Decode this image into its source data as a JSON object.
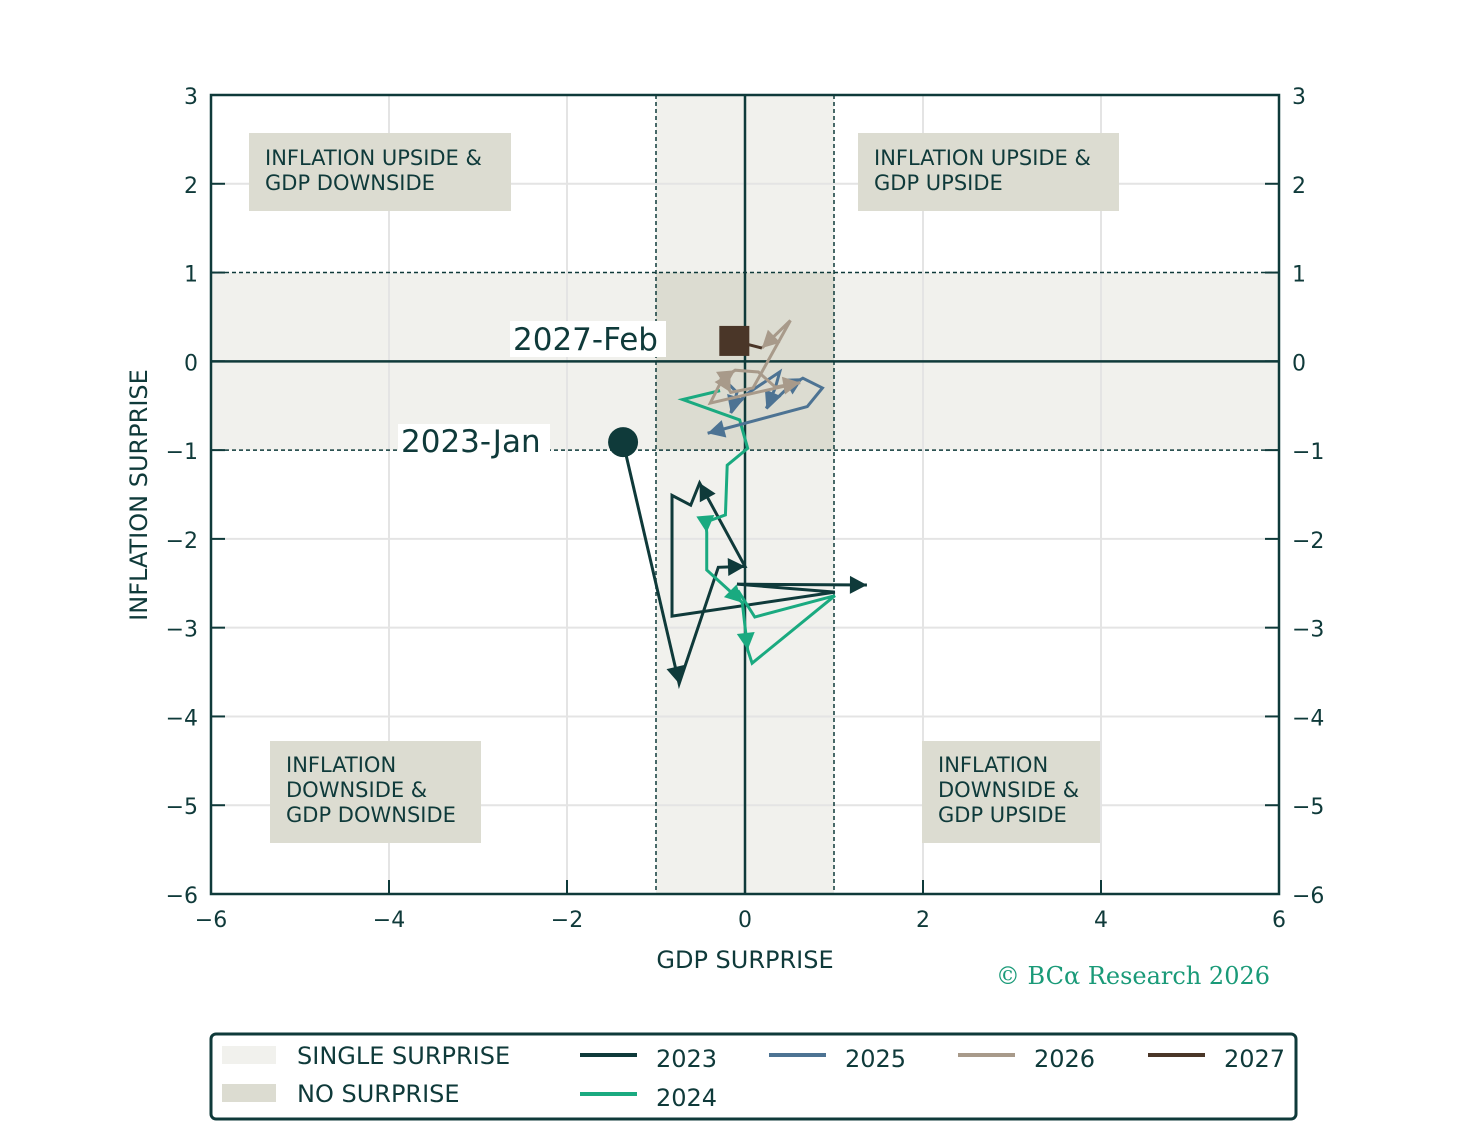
{
  "chart_data": {
    "type": "line",
    "xlabel": "GDP SURPRISE",
    "ylabel": "INFLATION SURPRISE",
    "xlim": [
      -6,
      6
    ],
    "ylim": [
      -6,
      3
    ],
    "xticks": [
      "-6",
      "-4",
      "-2",
      "0",
      "2",
      "4",
      "6"
    ],
    "yticks": [
      "3",
      "2",
      "1",
      "0",
      "-1",
      "-2",
      "-3",
      "-4",
      "-5",
      "-6"
    ],
    "grid": true,
    "single_surprise_band": {
      "x": [
        -1,
        1
      ],
      "y": [
        -1,
        1
      ]
    },
    "quadrant_labels": {
      "upper_left": [
        "INFLATION UPSIDE &",
        "GDP DOWNSIDE"
      ],
      "upper_right": [
        "INFLATION UPSIDE &",
        "GDP UPSIDE"
      ],
      "lower_left": [
        "INFLATION",
        "DOWNSIDE &",
        "GDP DOWNSIDE"
      ],
      "lower_right": [
        "INFLATION",
        "DOWNSIDE &",
        "GDP UPSIDE"
      ]
    },
    "annotations": {
      "start": "2023-Jan",
      "end": "2027-Feb"
    },
    "series": [
      {
        "name": "2023",
        "color": "#0f3a3a",
        "arrows": [
          1,
          3,
          4,
          10
        ],
        "points": [
          [
            -1.37,
            -0.91
          ],
          [
            -0.74,
            -3.63
          ],
          [
            -0.3,
            -2.32
          ],
          [
            0.0,
            -2.31
          ],
          [
            -0.51,
            -1.37
          ],
          [
            -0.61,
            -1.62
          ],
          [
            -0.82,
            -1.51
          ],
          [
            -0.82,
            -2.87
          ],
          [
            1.01,
            -2.6
          ],
          [
            -0.09,
            -2.51
          ],
          [
            1.37,
            -2.52
          ]
        ]
      },
      {
        "name": "2024",
        "color": "#1aaa80",
        "arrows": [
          7,
          10,
          11
        ],
        "points": [
          [
            -0.28,
            -0.33
          ],
          [
            -0.7,
            -0.43
          ],
          [
            -0.06,
            -0.66
          ],
          [
            0.03,
            -0.98
          ],
          [
            -0.2,
            -1.17
          ],
          [
            -0.22,
            -1.73
          ],
          [
            -0.44,
            -1.81
          ],
          [
            -0.43,
            -1.93
          ],
          [
            -0.43,
            -2.35
          ],
          [
            -0.08,
            -2.67
          ],
          [
            -0.03,
            -2.72
          ],
          [
            0.03,
            -3.25
          ],
          [
            0.08,
            -3.4
          ],
          [
            1.01,
            -2.64
          ],
          [
            0.11,
            -2.88
          ],
          [
            -0.08,
            -2.58
          ]
        ]
      },
      {
        "name": "2025",
        "color": "#4d7393",
        "arrows": [
          2,
          6,
          8,
          11
        ],
        "points": [
          [
            -0.28,
            -0.16
          ],
          [
            -0.09,
            -0.35
          ],
          [
            -0.16,
            -0.58
          ],
          [
            0.0,
            -0.38
          ],
          [
            0.39,
            -0.12
          ],
          [
            0.34,
            -0.3
          ],
          [
            0.24,
            -0.53
          ],
          [
            0.51,
            -0.27
          ],
          [
            0.65,
            -0.19
          ],
          [
            0.87,
            -0.3
          ],
          [
            0.7,
            -0.51
          ],
          [
            -0.42,
            -0.81
          ]
        ]
      },
      {
        "name": "2026",
        "color": "#a89a8a",
        "arrows": [
          1,
          4,
          8,
          11
        ],
        "points": [
          [
            -0.28,
            -0.21
          ],
          [
            -0.11,
            -0.1
          ],
          [
            0.15,
            -0.12
          ],
          [
            0.34,
            -0.29
          ],
          [
            0.62,
            -0.24
          ],
          [
            0.0,
            -0.38
          ],
          [
            -0.39,
            -0.47
          ],
          [
            -0.25,
            -0.19
          ],
          [
            -0.16,
            -0.35
          ],
          [
            0.09,
            -0.3
          ],
          [
            0.51,
            0.46
          ],
          [
            0.19,
            0.15
          ]
        ]
      },
      {
        "name": "2027",
        "color": "#4a3628",
        "arrows": [],
        "points": [
          [
            0.19,
            0.15
          ],
          [
            -0.12,
            0.23
          ]
        ]
      }
    ],
    "legend": {
      "placement": "bottom",
      "shading": [
        {
          "label": "SINGLE SURPRISE",
          "color": "#f1f1ed"
        },
        {
          "label": "NO SURPRISE",
          "color": "#dcdcd1"
        }
      ],
      "lines": [
        "2023",
        "2024",
        "2025",
        "2026",
        "2027"
      ]
    }
  },
  "credit": "© BCα Research 2026"
}
